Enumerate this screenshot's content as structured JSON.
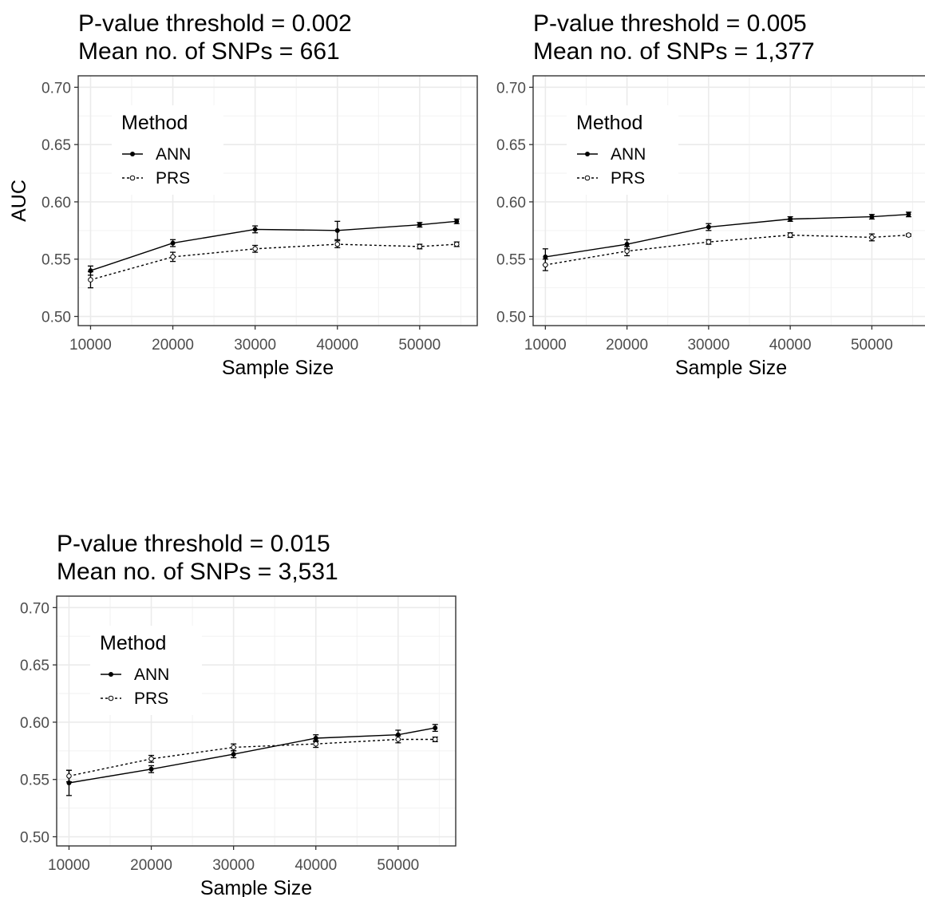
{
  "chart_data": [
    {
      "type": "line",
      "title": "P-value threshold = 0.002",
      "subtitle": "Mean no. of SNPs = 661",
      "xlabel": "Sample Size",
      "ylabel": "AUC",
      "xlim": [
        8500,
        57000
      ],
      "ylim": [
        0.492,
        0.71
      ],
      "xticks": [
        "10000",
        "20000",
        "30000",
        "40000",
        "50000"
      ],
      "yticks": [
        "0.50",
        "0.55",
        "0.60",
        "0.65",
        "0.70"
      ],
      "grid": true,
      "legend": {
        "title": "Method",
        "position": "top-left"
      },
      "x": [
        10000,
        20000,
        30000,
        40000,
        50000,
        54500
      ],
      "series": [
        {
          "name": "ANN",
          "style": "solid",
          "marker": "filled",
          "values": [
            0.54,
            0.564,
            0.576,
            0.575,
            0.58,
            0.583
          ],
          "err": [
            0.004,
            0.003,
            0.003,
            0.008,
            0.002,
            0.002
          ]
        },
        {
          "name": "PRS",
          "style": "dashed",
          "marker": "open",
          "values": [
            0.532,
            0.552,
            0.559,
            0.563,
            0.561,
            0.563
          ],
          "err": [
            0.007,
            0.004,
            0.003,
            0.003,
            0.002,
            0.002
          ]
        }
      ]
    },
    {
      "type": "line",
      "title": "P-value threshold = 0.005",
      "subtitle": "Mean no. of SNPs = 1,377",
      "xlabel": "Sample Size",
      "ylabel": "",
      "xlim": [
        8500,
        57000
      ],
      "ylim": [
        0.492,
        0.71
      ],
      "xticks": [
        "10000",
        "20000",
        "30000",
        "40000",
        "50000"
      ],
      "yticks": [
        "0.50",
        "0.55",
        "0.60",
        "0.65",
        "0.70"
      ],
      "grid": true,
      "legend": {
        "title": "Method",
        "position": "top-left"
      },
      "x": [
        10000,
        20000,
        30000,
        40000,
        50000,
        54500
      ],
      "series": [
        {
          "name": "ANN",
          "style": "solid",
          "marker": "filled",
          "values": [
            0.552,
            0.563,
            0.578,
            0.585,
            0.587,
            0.589
          ],
          "err": [
            0.007,
            0.004,
            0.003,
            0.002,
            0.002,
            0.002
          ]
        },
        {
          "name": "PRS",
          "style": "dashed",
          "marker": "open",
          "values": [
            0.545,
            0.557,
            0.565,
            0.571,
            0.569,
            0.571
          ],
          "err": [
            0.005,
            0.004,
            0.002,
            0.002,
            0.003,
            0.001
          ]
        }
      ]
    },
    {
      "type": "line",
      "title": "P-value threshold = 0.015",
      "subtitle": "Mean no. of SNPs = 3,531",
      "xlabel": "Sample Size",
      "ylabel": "",
      "xlim": [
        8500,
        57000
      ],
      "ylim": [
        0.492,
        0.71
      ],
      "xticks": [
        "10000",
        "20000",
        "30000",
        "40000",
        "50000"
      ],
      "yticks": [
        "0.50",
        "0.55",
        "0.60",
        "0.65",
        "0.70"
      ],
      "grid": true,
      "legend": {
        "title": "Method",
        "position": "top-left"
      },
      "x": [
        10000,
        20000,
        30000,
        40000,
        50000,
        54500
      ],
      "series": [
        {
          "name": "ANN",
          "style": "solid",
          "marker": "filled",
          "values": [
            0.547,
            0.559,
            0.572,
            0.586,
            0.589,
            0.595
          ],
          "err": [
            0.011,
            0.003,
            0.003,
            0.003,
            0.004,
            0.003
          ]
        },
        {
          "name": "PRS",
          "style": "dashed",
          "marker": "open",
          "values": [
            0.553,
            0.568,
            0.578,
            0.581,
            0.585,
            0.585
          ],
          "err": [
            0.005,
            0.003,
            0.003,
            0.003,
            0.003,
            0.002
          ]
        }
      ]
    }
  ]
}
